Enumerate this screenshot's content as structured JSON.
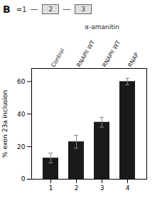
{
  "chart_data": {
    "type": "bar",
    "title": "B",
    "categories": [
      "1",
      "2",
      "3",
      "4"
    ],
    "values": [
      13,
      23,
      35,
      60
    ],
    "errors": [
      3,
      4,
      3,
      2
    ],
    "color": "#1a1a1a",
    "ylabel": "% exon 23a inclusion",
    "ylim": [
      0,
      68
    ],
    "yticks": [
      0,
      20,
      40,
      60
    ],
    "grid": false,
    "lane_labels": [
      "Control",
      "RNAPII WT",
      "RNAPII WT",
      "RNAP"
    ],
    "annotations": [
      {
        "text": "α-amanitin",
        "categories": [
          "2",
          "3",
          "4"
        ]
      }
    ],
    "diagram_labels": [
      "=1",
      "2",
      "3"
    ]
  }
}
